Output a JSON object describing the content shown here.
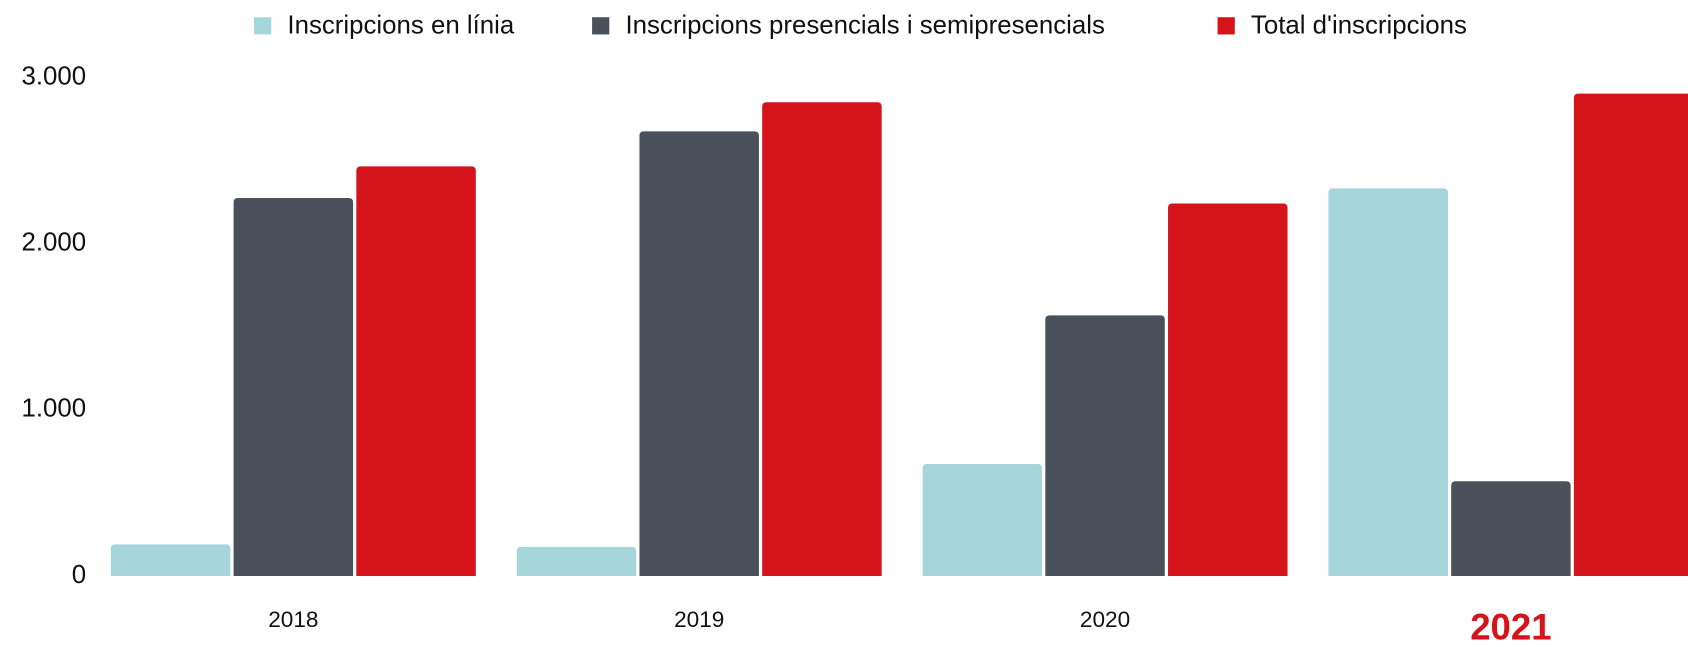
{
  "chart_data": {
    "type": "bar",
    "categories": [
      "2018",
      "2019",
      "2020",
      "2021"
    ],
    "series": [
      {
        "name": "Inscripcions en línia",
        "color": "#a6d6da",
        "values": [
          190,
          175,
          674,
          2333
        ]
      },
      {
        "name": "Inscripcions presencials i semipresencials",
        "color": "#4a515a",
        "values": [
          2275,
          2676,
          1568,
          570
        ]
      },
      {
        "name": "Total d'inscripcions",
        "color": "#d4131b",
        "values": [
          2465,
          2851,
          2242,
          2903
        ]
      }
    ],
    "ylim": [
      0,
      3000
    ],
    "yticks": [
      {
        "value": 0,
        "label": "0"
      },
      {
        "value": 1000,
        "label": "1.000"
      },
      {
        "value": 2000,
        "label": "2.000"
      },
      {
        "value": 3000,
        "label": "3.000"
      }
    ],
    "grid": false,
    "legend": "top",
    "highlighted_category": "2021",
    "highlight_color": "#d4131b"
  }
}
